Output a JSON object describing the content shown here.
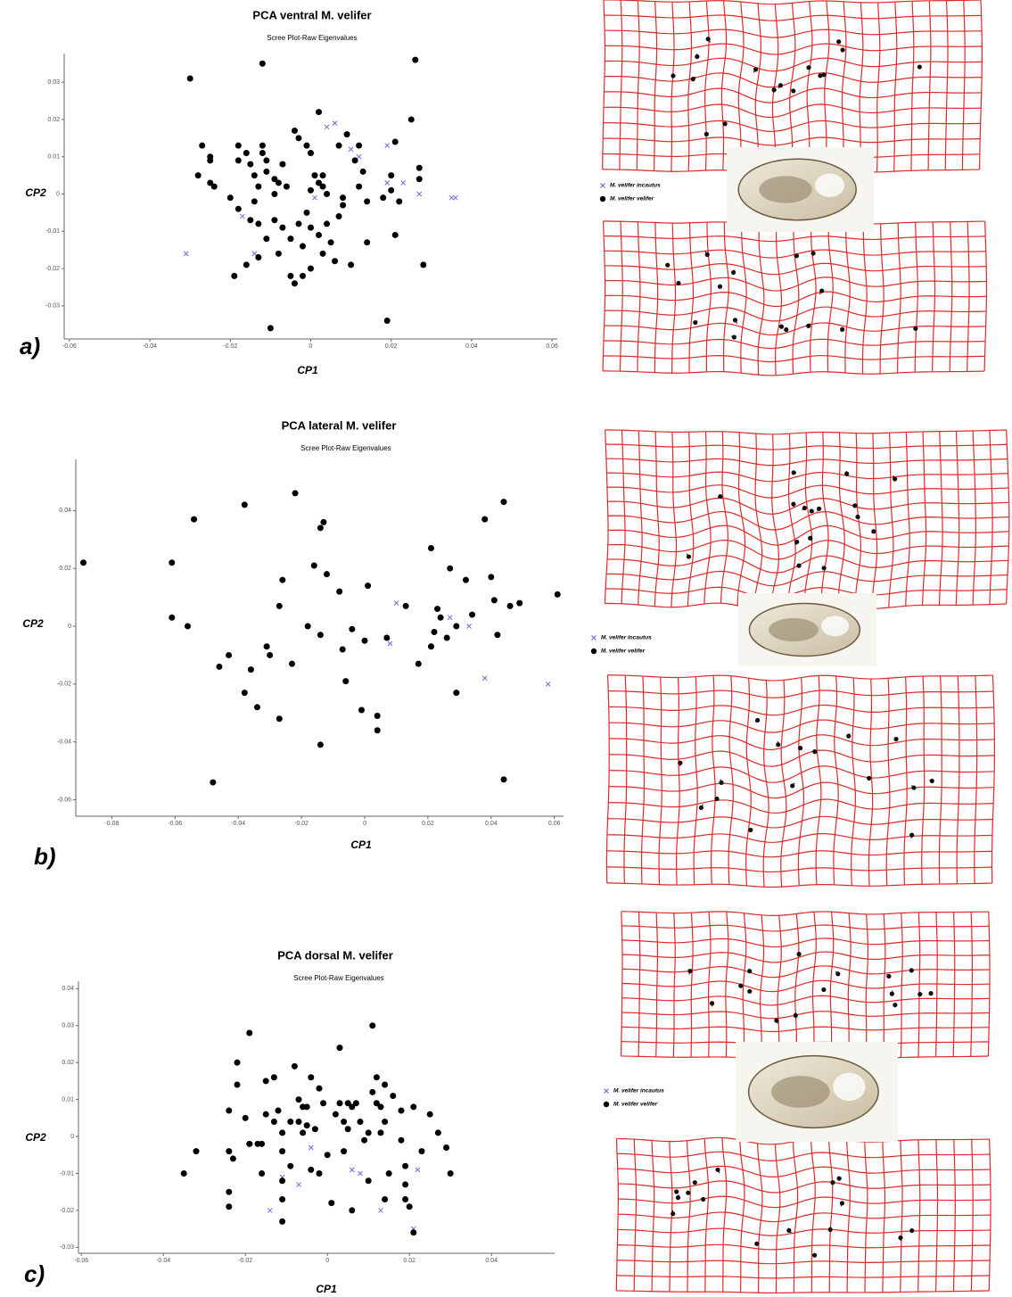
{
  "chart_data": [
    {
      "type": "scatter",
      "title": "PCA ventral M. velifer",
      "subtitle": "Scree Plot-Raw Eigenvalues",
      "x_label": "CP1",
      "y_label": "CP2",
      "panel_label": "a)",
      "xlim": [
        -0.0613,
        0.0613
      ],
      "ylim": [
        -0.0389,
        0.0377
      ],
      "xticks": [
        -0.06,
        -0.04,
        -0.02,
        0,
        0.02,
        0.04,
        0.06
      ],
      "yticks": [
        -0.03,
        -0.02,
        -0.01,
        0,
        0.01,
        0.02,
        0.03
      ],
      "series": [
        {
          "name": "M. velifer incautus",
          "color": "#6b6bdc",
          "marker": "x",
          "x": [
            -0.031,
            -0.017,
            -0.014,
            0.001,
            0.004,
            0.006,
            0.01,
            0.012,
            0.019,
            0.019,
            0.023,
            0.027,
            0.035,
            0.036
          ],
          "values": [
            -0.016,
            -0.006,
            -0.016,
            -0.001,
            0.018,
            0.019,
            0.012,
            0.01,
            0.013,
            0.003,
            0.003,
            0.0,
            -0.001,
            -0.001
          ]
        },
        {
          "name": "M. velifer velifer",
          "color": "#000000",
          "marker": "o",
          "x": [
            -0.03,
            -0.012,
            0.026,
            0.025,
            0.002,
            -0.027,
            -0.025,
            -0.025,
            -0.028,
            -0.025,
            -0.024,
            -0.02,
            -0.018,
            -0.018,
            -0.016,
            -0.015,
            -0.014,
            -0.013,
            -0.012,
            -0.012,
            -0.011,
            -0.011,
            -0.009,
            -0.009,
            -0.008,
            -0.007,
            -0.006,
            -0.004,
            -0.003,
            -0.001,
            0.0,
            0.001,
            0.002,
            0.003,
            0.003,
            0.004,
            0.0,
            -0.014,
            -0.018,
            -0.015,
            -0.013,
            -0.011,
            -0.009,
            -0.007,
            -0.005,
            -0.003,
            -0.001,
            0.0,
            0.002,
            0.004,
            0.005,
            0.007,
            0.008,
            0.008,
            0.009,
            0.011,
            0.012,
            0.014,
            0.013,
            0.018,
            0.02,
            0.02,
            0.022,
            0.021,
            0.027,
            0.027,
            0.028,
            0.021,
            -0.019,
            -0.016,
            -0.013,
            -0.01,
            -0.008,
            -0.005,
            -0.004,
            -0.002,
            0.0,
            0.003,
            0.006,
            0.01,
            0.019,
            0.014,
            -0.002,
            0.007,
            0.012
          ],
          "values": [
            0.031,
            0.035,
            0.036,
            0.02,
            0.022,
            0.013,
            0.01,
            0.009,
            0.005,
            0.003,
            0.002,
            -0.001,
            0.013,
            0.009,
            0.011,
            0.008,
            0.005,
            0.002,
            0.013,
            0.011,
            0.009,
            0.006,
            0.004,
            0.0,
            0.003,
            0.008,
            0.002,
            0.017,
            0.015,
            0.013,
            0.011,
            0.005,
            0.003,
            0.005,
            0.002,
            0.0,
            0.001,
            -0.002,
            -0.004,
            -0.007,
            -0.008,
            -0.012,
            -0.007,
            -0.009,
            -0.012,
            -0.008,
            -0.005,
            -0.009,
            -0.011,
            -0.008,
            -0.013,
            -0.006,
            -0.001,
            -0.003,
            0.016,
            0.009,
            0.002,
            -0.002,
            0.006,
            -0.001,
            0.005,
            0.001,
            -0.002,
            -0.011,
            0.007,
            0.004,
            -0.019,
            0.014,
            -0.022,
            -0.019,
            -0.017,
            -0.036,
            -0.016,
            -0.022,
            -0.024,
            -0.022,
            -0.02,
            -0.016,
            -0.018,
            -0.019,
            -0.034,
            -0.013,
            -0.014,
            0.013,
            0.013
          ]
        }
      ]
    },
    {
      "type": "scatter",
      "title": "PCA lateral M. velifer",
      "subtitle": "Scree Plot-Raw Eigenvalues",
      "x_label": "CP1",
      "y_label": "CP2",
      "panel_label": "b)",
      "xlim": [
        -0.0914,
        0.0629
      ],
      "ylim": [
        -0.0657,
        0.0577
      ],
      "xticks": [
        -0.08,
        -0.06,
        -0.04,
        -0.02,
        0,
        0.02,
        0.04,
        0.06
      ],
      "yticks": [
        -0.06,
        -0.04,
        -0.02,
        0,
        0.02,
        0.04
      ],
      "series": [
        {
          "name": "M. velifer incautus",
          "color": "#6b6bdc",
          "marker": "x",
          "x": [
            0.01,
            0.008,
            0.027,
            0.033,
            0.038,
            0.058
          ],
          "values": [
            0.008,
            -0.006,
            0.003,
            0.0,
            -0.018,
            -0.02
          ]
        },
        {
          "name": "M. velifer velifer",
          "color": "#000000",
          "marker": "o",
          "x": [
            -0.089,
            -0.054,
            -0.038,
            -0.022,
            -0.061,
            -0.061,
            -0.056,
            -0.046,
            -0.043,
            -0.038,
            -0.034,
            -0.036,
            -0.031,
            -0.03,
            -0.027,
            -0.026,
            -0.027,
            -0.023,
            -0.018,
            -0.016,
            -0.014,
            -0.013,
            -0.012,
            -0.014,
            -0.014,
            -0.008,
            -0.007,
            -0.006,
            -0.004,
            -0.001,
            0.0,
            0.001,
            0.004,
            0.004,
            0.007,
            0.013,
            0.017,
            0.021,
            0.022,
            0.021,
            0.023,
            0.024,
            0.026,
            0.027,
            0.029,
            0.032,
            0.034,
            0.038,
            0.04,
            0.041,
            0.042,
            0.044,
            0.046,
            0.049,
            0.061,
            0.044,
            -0.048,
            0.029
          ],
          "values": [
            0.022,
            0.037,
            0.042,
            0.046,
            0.022,
            0.003,
            0.0,
            -0.014,
            -0.01,
            -0.023,
            -0.028,
            -0.015,
            -0.007,
            -0.01,
            -0.032,
            0.016,
            0.007,
            -0.013,
            0.0,
            0.021,
            0.034,
            0.036,
            0.018,
            -0.003,
            -0.041,
            0.012,
            -0.008,
            -0.019,
            -0.001,
            -0.029,
            -0.005,
            0.014,
            -0.031,
            -0.036,
            -0.004,
            0.007,
            -0.013,
            -0.007,
            -0.002,
            0.027,
            0.006,
            0.003,
            -0.004,
            0.02,
            -0.023,
            0.016,
            0.004,
            0.037,
            0.017,
            0.009,
            -0.003,
            0.043,
            0.007,
            0.008,
            0.011,
            -0.053,
            -0.054,
            0.0
          ]
        }
      ]
    },
    {
      "type": "scatter",
      "title": "PCA dorsal M. velifer",
      "subtitle": "Scree Plot-Raw Eigenvalues",
      "x_label": "CP1",
      "y_label": "CP2",
      "panel_label": "c)",
      "xlim": [
        -0.0607,
        0.0554
      ],
      "ylim": [
        -0.0316,
        0.042
      ],
      "xticks": [
        -0.06,
        -0.04,
        -0.02,
        0,
        0.02,
        0.04
      ],
      "yticks": [
        -0.03,
        -0.02,
        -0.01,
        0,
        0.01,
        0.02,
        0.03,
        0.04
      ],
      "series": [
        {
          "name": "M. velifer incautus",
          "color": "#6b6bdc",
          "marker": "x",
          "x": [
            -0.014,
            -0.011,
            -0.007,
            -0.004,
            -0.002,
            0.006,
            0.008,
            0.013,
            0.022,
            0.021
          ],
          "values": [
            -0.02,
            -0.011,
            -0.013,
            -0.003,
            -0.01,
            -0.009,
            -0.01,
            -0.02,
            -0.009,
            -0.025
          ]
        },
        {
          "name": "M. velifer velifer",
          "color": "#000000",
          "marker": "o",
          "x": [
            -0.035,
            -0.032,
            -0.024,
            -0.024,
            -0.024,
            -0.023,
            -0.024,
            -0.022,
            -0.022,
            -0.02,
            -0.019,
            -0.019,
            -0.017,
            -0.016,
            -0.016,
            -0.015,
            -0.015,
            -0.013,
            -0.013,
            -0.012,
            -0.011,
            -0.011,
            -0.011,
            -0.011,
            -0.011,
            -0.009,
            -0.009,
            -0.008,
            -0.007,
            -0.007,
            -0.006,
            -0.006,
            -0.005,
            -0.005,
            -0.004,
            -0.004,
            -0.003,
            -0.002,
            -0.002,
            -0.001,
            0.0,
            0.001,
            0.002,
            0.003,
            0.003,
            0.004,
            0.004,
            0.005,
            0.005,
            0.006,
            0.006,
            0.007,
            0.008,
            0.009,
            0.01,
            0.011,
            0.011,
            0.012,
            0.012,
            0.013,
            0.013,
            0.014,
            0.014,
            0.015,
            0.016,
            0.018,
            0.018,
            0.019,
            0.019,
            0.019,
            0.02,
            0.021,
            0.021,
            0.023,
            0.025,
            0.027,
            0.029,
            0.03,
            0.014,
            0.01,
            -0.019
          ],
          "values": [
            -0.01,
            -0.004,
            -0.004,
            -0.015,
            -0.019,
            -0.006,
            0.007,
            0.014,
            0.02,
            0.005,
            0.028,
            -0.002,
            -0.002,
            -0.002,
            -0.01,
            0.015,
            0.006,
            0.004,
            0.016,
            0.007,
            0.001,
            -0.004,
            -0.012,
            -0.017,
            -0.023,
            0.004,
            -0.008,
            0.019,
            0.01,
            0.004,
            0.008,
            0.001,
            0.003,
            0.008,
            0.016,
            -0.009,
            0.002,
            -0.01,
            0.013,
            0.009,
            -0.005,
            -0.018,
            0.006,
            0.009,
            0.024,
            0.004,
            -0.004,
            0.009,
            0.002,
            -0.02,
            0.008,
            0.009,
            0.004,
            -0.001,
            0.001,
            0.012,
            0.03,
            0.009,
            0.016,
            0.008,
            0.001,
            0.014,
            0.004,
            -0.01,
            0.011,
            0.007,
            -0.001,
            -0.008,
            -0.013,
            -0.017,
            -0.019,
            0.008,
            -0.026,
            -0.004,
            0.006,
            0.001,
            -0.003,
            -0.01,
            -0.017,
            -0.012,
            -0.002
          ]
        }
      ]
    }
  ]
}
